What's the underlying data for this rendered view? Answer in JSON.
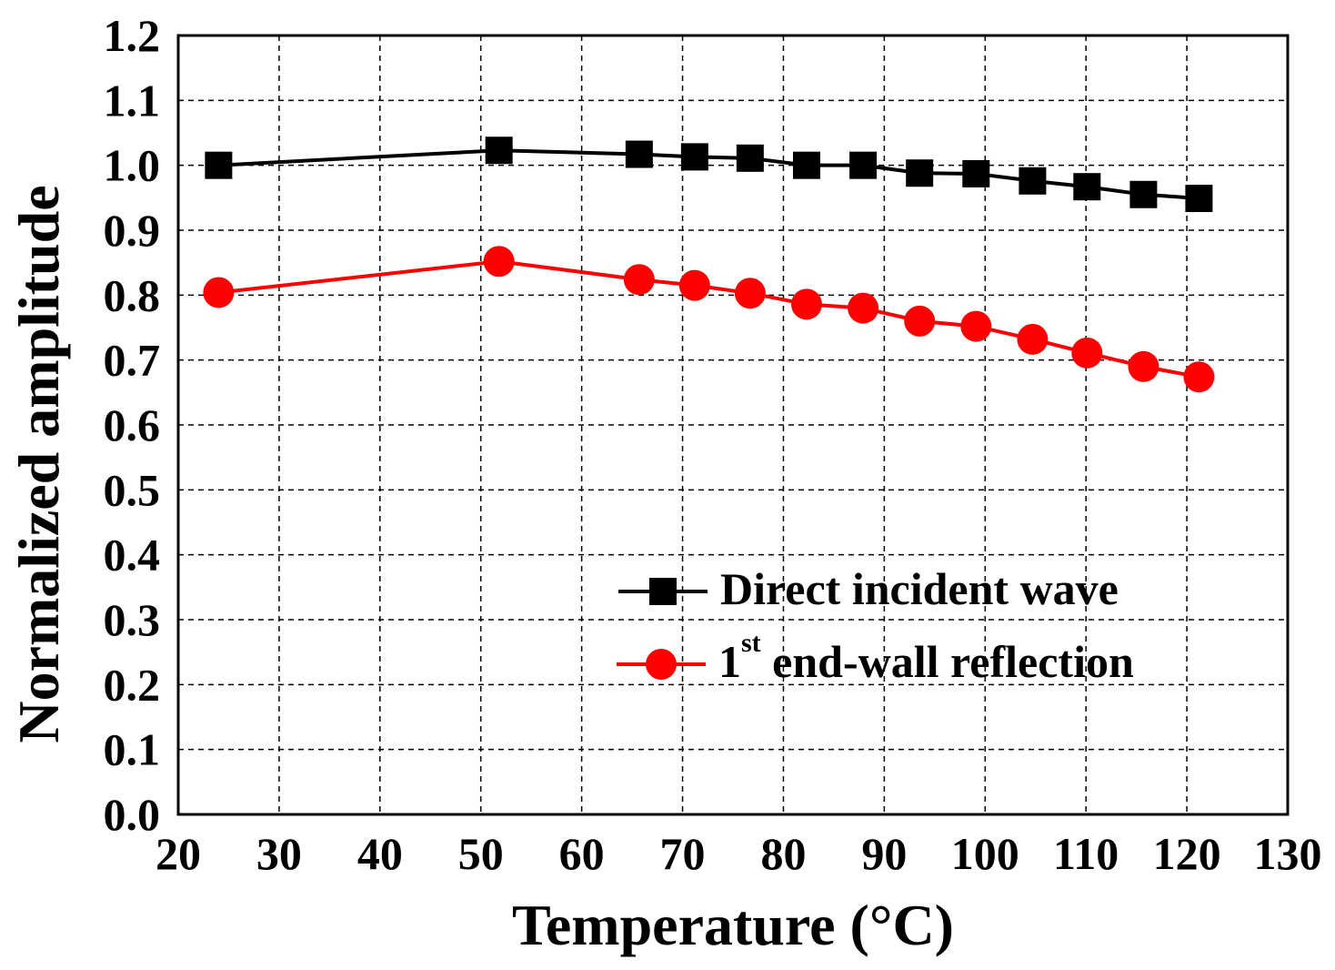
{
  "chart_data": {
    "type": "line",
    "title": "",
    "xlabel": "Temperature (°C)",
    "ylabel": "Normalized amplitude",
    "xlim": [
      20,
      130
    ],
    "ylim": [
      0.0,
      1.2
    ],
    "xticks": [
      20,
      30,
      40,
      50,
      60,
      70,
      80,
      90,
      100,
      110,
      120,
      130
    ],
    "xtick_labels": [
      "20",
      "30",
      "40",
      "50",
      "60",
      "70",
      "80",
      "90",
      "100",
      "110",
      "120",
      "130"
    ],
    "yticks": [
      0.0,
      0.1,
      0.2,
      0.3,
      0.4,
      0.5,
      0.6,
      0.7,
      0.8,
      0.9,
      1.0,
      1.1,
      1.2
    ],
    "ytick_labels": [
      "0.0",
      "0.1",
      "0.2",
      "0.3",
      "0.4",
      "0.5",
      "0.6",
      "0.7",
      "0.8",
      "0.9",
      "1.0",
      "1.1",
      "1.2"
    ],
    "grid": true,
    "legend_position": "bottom-right",
    "series": [
      {
        "name": "Direct incident wave",
        "marker": "square",
        "color": "#000000",
        "x": [
          24,
          51.8,
          65.7,
          71.2,
          76.7,
          82.3,
          87.9,
          93.5,
          99.1,
          104.7,
          110.1,
          115.7,
          121.2
        ],
        "y": [
          1.0,
          1.023,
          1.017,
          1.013,
          1.011,
          1.0,
          1.0,
          0.988,
          0.987,
          0.976,
          0.967,
          0.955,
          0.949
        ]
      },
      {
        "name": "1st end-wall reflection",
        "legend_main": "1",
        "legend_sup": "st",
        "legend_rest": " end-wall reflection",
        "marker": "circle",
        "color": "#ff0000",
        "x": [
          24,
          51.8,
          65.7,
          71.2,
          76.7,
          82.3,
          87.9,
          93.5,
          99.1,
          104.7,
          110.1,
          115.7,
          121.2
        ],
        "y": [
          0.804,
          0.852,
          0.824,
          0.815,
          0.803,
          0.786,
          0.78,
          0.76,
          0.752,
          0.732,
          0.711,
          0.69,
          0.674
        ]
      }
    ]
  }
}
